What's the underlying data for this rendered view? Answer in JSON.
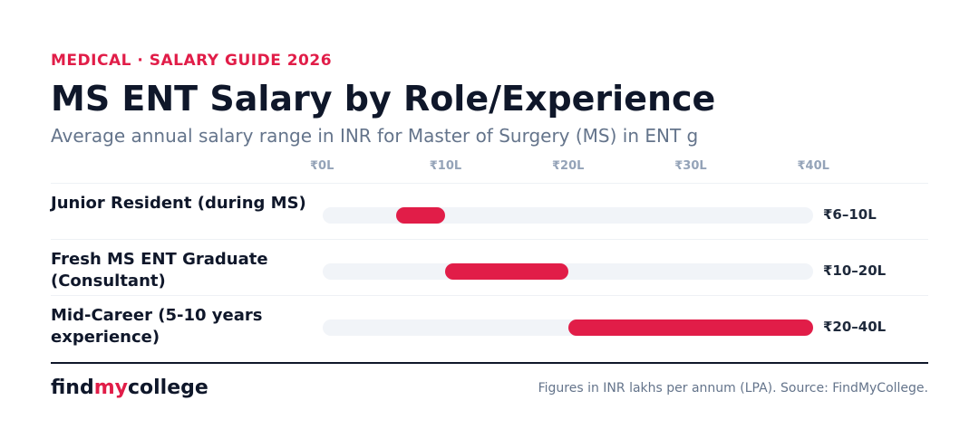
{
  "header": {
    "eyebrow": "MEDICAL · SALARY GUIDE 2026",
    "title": "MS ENT Salary by Role/Experience",
    "subtitle": "Average annual salary range in INR for Master of Surgery (MS) in ENT g"
  },
  "chart_data": {
    "type": "bar",
    "subtype": "floating-range",
    "xlim": [
      0,
      40
    ],
    "ticks": [
      "₹0L",
      "₹10L",
      "₹20L",
      "₹30L",
      "₹40L"
    ],
    "tick_values": [
      0,
      10,
      20,
      30,
      40
    ],
    "grid": false,
    "bar_color": "#e11d48",
    "track_color": "#f1f4f8",
    "rows": [
      {
        "label": "Junior Resident (during MS)",
        "min": 6,
        "max": 10,
        "value_label": "₹6–10L"
      },
      {
        "label": "Fresh MS ENT Graduate (Consultant)",
        "min": 10,
        "max": 20,
        "value_label": "₹10–20L"
      },
      {
        "label": "Mid-Career (5-10 years experience)",
        "min": 20,
        "max": 40,
        "value_label": "₹20–40L"
      }
    ]
  },
  "footer": {
    "logo_part1": "find",
    "logo_part2": "my",
    "logo_part3": "college",
    "source": "Figures in INR lakhs per annum (LPA). Source: FindMyCollege."
  },
  "colors": {
    "accent": "#e11d48",
    "text_dark": "#0f172a",
    "text_muted": "#64748b"
  }
}
